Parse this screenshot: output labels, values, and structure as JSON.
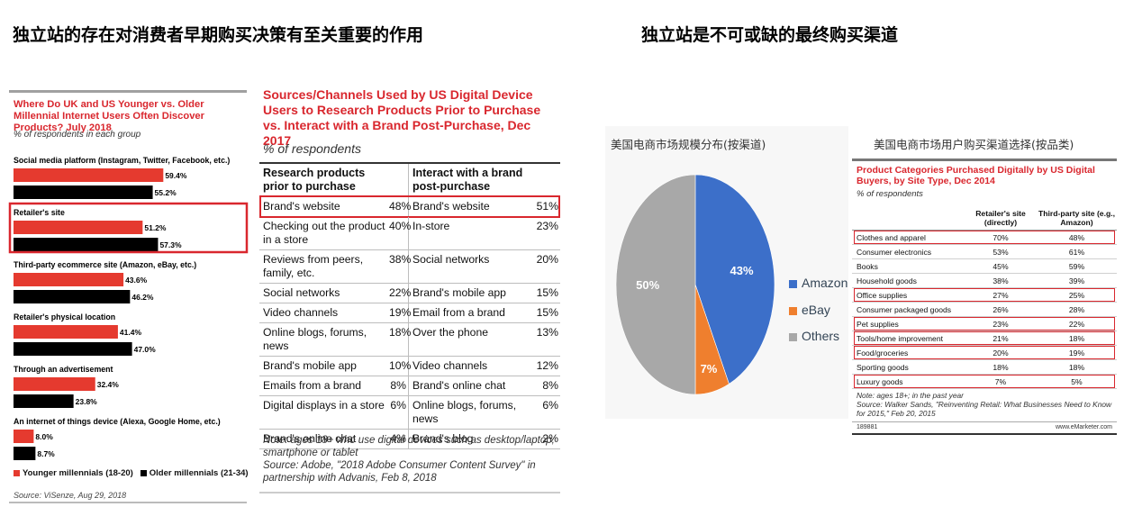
{
  "headings": {
    "left": "独立站的存在对消费者早期购买决策有至关重要的作用",
    "right": "独立站是不可或缺的最终购买渠道"
  },
  "chart_data": [
    {
      "type": "bar",
      "title": "Where Do UK and US Younger vs. Older Millennial Internet Users Often Discover Products? July 2018",
      "subtitle": "% of respondents in each group",
      "categories": [
        "Social media platform (Instagram, Twitter, Facebook, etc.)",
        "Retailer's site",
        "Third-party ecommerce site (Amazon, eBay, etc.)",
        "Retailer's physical location",
        "Through an advertisement",
        "An internet of things device (Alexa, Google Home, etc.)"
      ],
      "series": [
        {
          "name": "Younger millennials (18-20)",
          "values": [
            59.4,
            51.2,
            43.6,
            41.4,
            32.4,
            8.0
          ],
          "labels": [
            "59.4%",
            "51.2%",
            "43.6%",
            "41.4%",
            "32.4%",
            "8.0%"
          ],
          "color": "#e53a2f"
        },
        {
          "name": "Older millennials (21-34)",
          "values": [
            55.2,
            57.3,
            46.2,
            47.0,
            23.8,
            8.7
          ],
          "labels": [
            "55.2%",
            "57.3%",
            "46.2%",
            "47.0%",
            "23.8%",
            "8.7%"
          ],
          "color": "#000000"
        }
      ],
      "highlight_category": "Retailer's site",
      "source": "Source: ViSenze, Aug 29, 2018"
    },
    {
      "type": "table",
      "title": "Sources/Channels Used by US Digital Device Users to Research Products Prior to Purchase vs. Interact with a Brand Post-Purchase, Dec 2017",
      "subtitle": "% of respondents",
      "col1_header": "Research products prior to purchase",
      "col2_header": "Interact with a brand post-purchase",
      "rows": [
        {
          "a": "Brand's website",
          "av": "48%",
          "b": "Brand's website",
          "bv": "51%"
        },
        {
          "a": "Checking out the product in a store",
          "av": "40%",
          "b": "In-store",
          "bv": "23%"
        },
        {
          "a": "Reviews from peers, family, etc.",
          "av": "38%",
          "b": "Social networks",
          "bv": "20%"
        },
        {
          "a": "Social networks",
          "av": "22%",
          "b": "Brand's mobile app",
          "bv": "15%"
        },
        {
          "a": "Video channels",
          "av": "19%",
          "b": "Email from a brand",
          "bv": "15%"
        },
        {
          "a": "Online blogs, forums, news",
          "av": "18%",
          "b": "Over the phone",
          "bv": "13%"
        },
        {
          "a": "Brand's mobile app",
          "av": "10%",
          "b": "Video channels",
          "bv": "12%"
        },
        {
          "a": "Emails from a brand",
          "av": "8%",
          "b": "Brand's online chat",
          "bv": "8%"
        },
        {
          "a": "Digital displays in a store",
          "av": "6%",
          "b": "Online blogs, forums, news",
          "bv": "6%"
        },
        {
          "a": "Brand's online chat",
          "av": "4%",
          "b": "Brand's blog",
          "bv": "2%"
        }
      ],
      "note": "Note: ages 18+ who use digital devices such as desktop/laptop, smartphone or tablet",
      "source": "Source: Adobe, \"2018 Adobe Consumer Content Survey\" in partnership with Advanis, Feb 8, 2018"
    },
    {
      "type": "pie",
      "title": "美国电商市场规模分布(按渠道)",
      "slices": [
        {
          "name": "Amazon",
          "value": 43,
          "label": "43%",
          "color": "#3c6fc9"
        },
        {
          "name": "eBay",
          "value": 7,
          "label": "7%",
          "color": "#ef7f2e"
        },
        {
          "name": "Others",
          "value": 50,
          "label": "50%",
          "color": "#a8a8a8"
        }
      ]
    },
    {
      "type": "table",
      "panel_title": "美国电商市场用户购买渠道选择(按品类)",
      "title": "Product Categories Purchased Digitally by US Digital Buyers, by Site Type, Dec 2014",
      "subtitle": "% of respondents",
      "col1_header": "Retailer's site (directly)",
      "col2_header": "Third-party site (e.g., Amazon)",
      "rows": [
        {
          "name": "Clothes and apparel",
          "a": "70%",
          "b": "48%",
          "highlight": true
        },
        {
          "name": "Consumer electronics",
          "a": "53%",
          "b": "61%",
          "highlight": false
        },
        {
          "name": "Books",
          "a": "45%",
          "b": "59%",
          "highlight": false
        },
        {
          "name": "Household goods",
          "a": "38%",
          "b": "39%",
          "highlight": false
        },
        {
          "name": "Office supplies",
          "a": "27%",
          "b": "25%",
          "highlight": true
        },
        {
          "name": "Consumer packaged goods",
          "a": "26%",
          "b": "28%",
          "highlight": false
        },
        {
          "name": "Pet supplies",
          "a": "23%",
          "b": "22%",
          "highlight": true
        },
        {
          "name": "Tools/home improvement",
          "a": "21%",
          "b": "18%",
          "highlight": true
        },
        {
          "name": "Food/groceries",
          "a": "20%",
          "b": "19%",
          "highlight": true
        },
        {
          "name": "Sporting goods",
          "a": "18%",
          "b": "18%",
          "highlight": false
        },
        {
          "name": "Luxury goods",
          "a": "7%",
          "b": "5%",
          "highlight": true
        }
      ],
      "note": "Note: ages 18+; in the past year",
      "source": "Source: Walker Sands, \"Reinventing Retail: What Businesses Need to Know for 2015,\" Feb 20, 2015",
      "footer_id": "189881",
      "footer_brand": "www.eMarketer.com"
    }
  ]
}
